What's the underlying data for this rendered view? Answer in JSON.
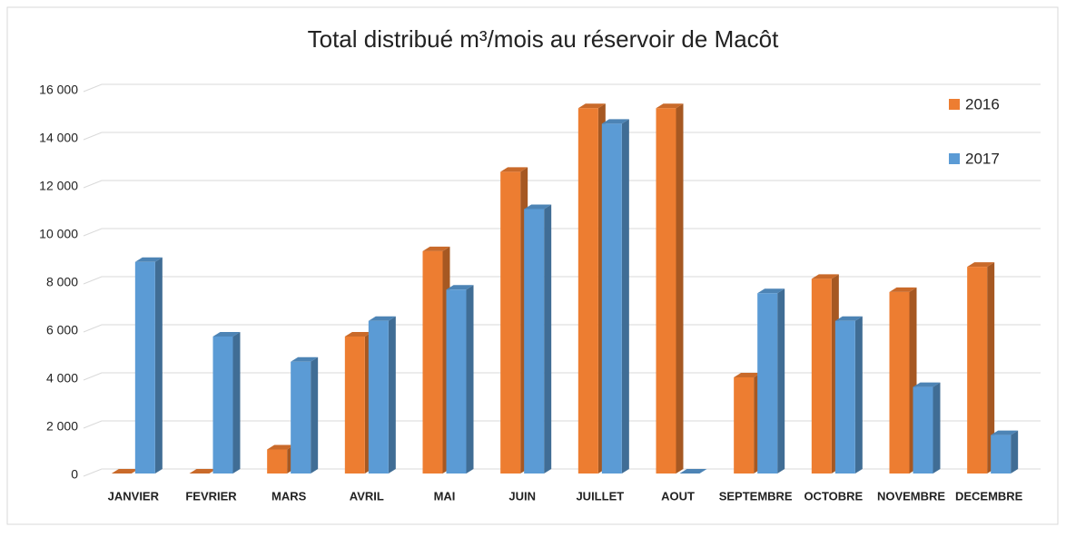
{
  "chart_data": {
    "type": "bar3d",
    "title": "Total distribué m³/mois au réservoir de Macôt",
    "categories": [
      "JANVIER",
      "FEVRIER",
      "MARS",
      "AVRIL",
      "MAI",
      "JUIN",
      "JUILLET",
      "AOUT",
      "SEPTEMBRE",
      "OCTOBRE",
      "NOVEMBRE",
      "DECEMBRE"
    ],
    "series": [
      {
        "name": "2016",
        "color": "#ed7d31",
        "values": [
          0,
          0,
          1000,
          5700,
          9250,
          12550,
          15200,
          15200,
          4000,
          8100,
          7550,
          8600
        ]
      },
      {
        "name": "2017",
        "color": "#5b9bd5",
        "values": [
          8800,
          5700,
          4650,
          6350,
          7650,
          11000,
          14550,
          0,
          7500,
          6350,
          3600,
          1600
        ]
      }
    ],
    "ylim": [
      0,
      16000
    ],
    "yticks": [
      0,
      {
        "value": 2000,
        "label": "2 000"
      },
      {
        "value": 4000,
        "label": "4 000"
      },
      {
        "value": 6000,
        "label": "6 000"
      },
      {
        "value": 8000,
        "label": "8 000"
      },
      {
        "value": 10000,
        "label": "10 000"
      },
      {
        "value": 12000,
        "label": "12 000"
      },
      {
        "value": 14000,
        "label": "14 000"
      },
      {
        "value": 16000,
        "label": "16 000"
      }
    ],
    "grid": true,
    "legend": "top-right"
  }
}
